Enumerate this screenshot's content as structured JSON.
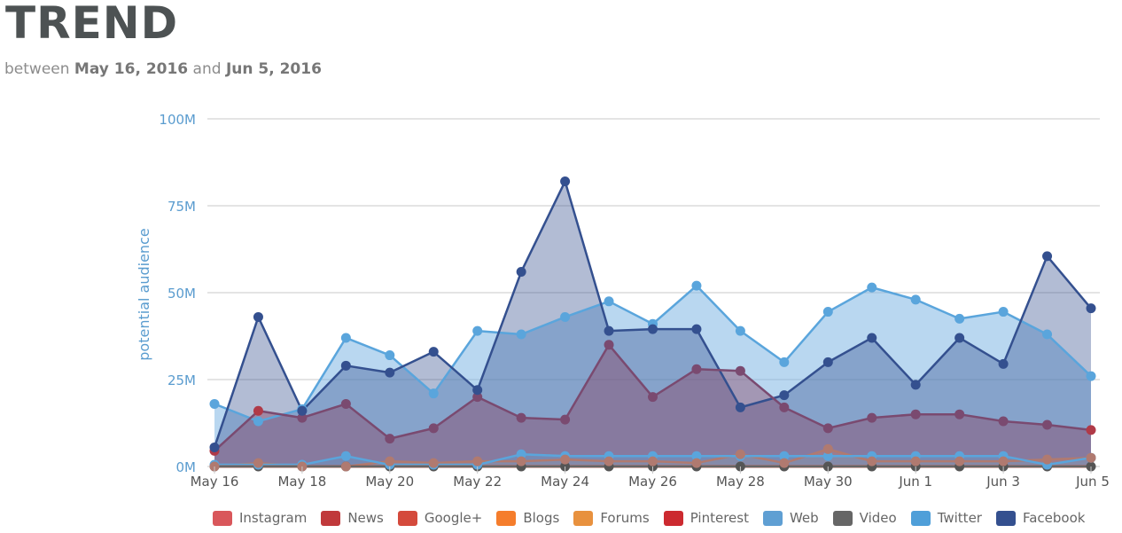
{
  "header": {
    "title": "TREND",
    "subtitle_prefix": "between",
    "start_date": "May 16, 2016",
    "subtitle_mid": "and",
    "end_date": "Jun 5, 2016"
  },
  "chart_data": {
    "type": "area",
    "ylabel": "potential audience",
    "ylim": [
      0,
      100000000
    ],
    "yticks": [
      0,
      25000000,
      50000000,
      75000000,
      100000000
    ],
    "yticklabels": [
      "0M",
      "25M",
      "50M",
      "75M",
      "100M"
    ],
    "x": [
      "May 16",
      "May 17",
      "May 18",
      "May 19",
      "May 20",
      "May 21",
      "May 22",
      "May 23",
      "May 24",
      "May 25",
      "May 26",
      "May 27",
      "May 28",
      "May 29",
      "May 30",
      "May 31",
      "Jun 1",
      "Jun 2",
      "Jun 3",
      "Jun 4",
      "Jun 5"
    ],
    "xticklabels": [
      "May 16",
      "May 18",
      "May 20",
      "May 22",
      "May 24",
      "May 26",
      "May 28",
      "May 30",
      "Jun 1",
      "Jun 3",
      "Jun 5"
    ],
    "grid": true,
    "legend_position": "bottom",
    "series": [
      {
        "name": "Instagram",
        "color": "#d9575b",
        "values": [
          0,
          0,
          0,
          0,
          0,
          0,
          0,
          0,
          0,
          0,
          0,
          0,
          0,
          0,
          0,
          0,
          0,
          0,
          0,
          0,
          0
        ]
      },
      {
        "name": "News",
        "color": "#c0393b",
        "values": [
          4500000,
          16000000,
          14000000,
          18000000,
          8000000,
          11000000,
          20000000,
          14000000,
          13500000,
          35000000,
          20000000,
          28000000,
          27500000,
          17000000,
          11000000,
          14000000,
          15000000,
          15000000,
          13000000,
          12000000,
          10500000
        ]
      },
      {
        "name": "Google+",
        "color": "#d44a3c",
        "values": [
          0,
          1000000,
          0,
          0,
          1500000,
          1000000,
          1500000,
          1500000,
          2000000,
          1500000,
          1500000,
          1000000,
          3500000,
          1000000,
          5000000,
          1500000,
          1500000,
          1500000,
          1500000,
          2000000,
          2500000
        ]
      },
      {
        "name": "Blogs",
        "color": "#f57d2c",
        "values": [
          0,
          0,
          0,
          0,
          0,
          0,
          0,
          0,
          0,
          0,
          0,
          0,
          0,
          0,
          0,
          0,
          0,
          0,
          0,
          0,
          0
        ]
      },
      {
        "name": "Forums",
        "color": "#e8913e",
        "values": [
          0,
          0,
          0,
          0,
          0,
          0,
          0,
          0,
          0,
          0,
          0,
          0,
          0,
          0,
          0,
          0,
          0,
          0,
          0,
          0,
          0
        ]
      },
      {
        "name": "Pinterest",
        "color": "#cc2a30",
        "values": [
          0,
          0,
          0,
          0,
          0,
          0,
          0,
          0,
          0,
          0,
          0,
          0,
          0,
          0,
          0,
          0,
          0,
          0,
          0,
          0,
          0
        ]
      },
      {
        "name": "Web",
        "color": "#5f9fd3",
        "values": [
          500000,
          500000,
          500000,
          3000000,
          500000,
          500000,
          500000,
          3500000,
          3000000,
          3000000,
          3000000,
          3000000,
          3000000,
          3000000,
          3000000,
          3000000,
          3000000,
          3000000,
          3000000,
          500000,
          2500000
        ]
      },
      {
        "name": "Video",
        "color": "#666666",
        "values": [
          0,
          0,
          0,
          0,
          0,
          0,
          0,
          0,
          0,
          0,
          0,
          0,
          0,
          0,
          0,
          0,
          0,
          0,
          0,
          0,
          0
        ]
      },
      {
        "name": "Twitter",
        "color": "#4f9fd9",
        "values": [
          18000000,
          13000000,
          16500000,
          37000000,
          32000000,
          21000000,
          39000000,
          38000000,
          43000000,
          47500000,
          41000000,
          52000000,
          39000000,
          30000000,
          44500000,
          51500000,
          48000000,
          42500000,
          44500000,
          38000000,
          26000000
        ]
      },
      {
        "name": "Facebook",
        "color": "#34508f",
        "values": [
          5500000,
          43000000,
          16000000,
          29000000,
          27000000,
          33000000,
          22000000,
          56000000,
          82000000,
          39000000,
          39500000,
          39500000,
          17000000,
          20500000,
          30000000,
          37000000,
          23500000,
          37000000,
          29500000,
          60500000,
          45500000
        ]
      }
    ]
  }
}
